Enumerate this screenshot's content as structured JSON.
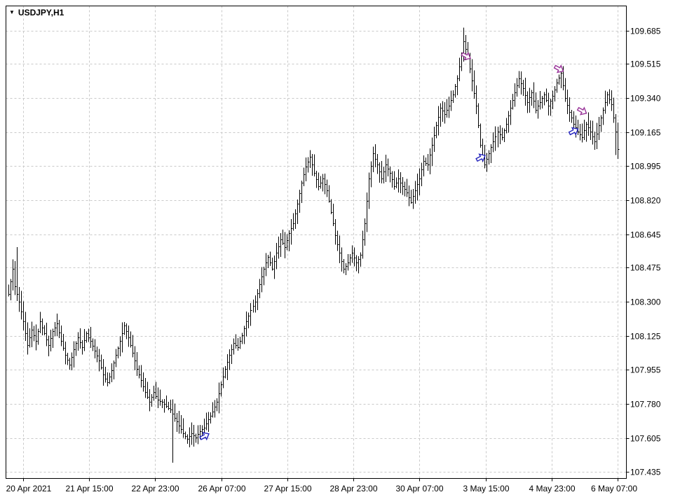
{
  "header": {
    "symbol_period": "USDJPY,H1",
    "dropdown_icon": "▼"
  },
  "chart_data": {
    "type": "bar",
    "subtype": "ohlc-hl-bars",
    "title": "USDJPY,H1",
    "symbol": "USDJPY",
    "period": "H1",
    "ylim": [
      107.4,
      109.81
    ],
    "grid": true,
    "bar_count": 290,
    "price_ticks": [
      "109.685",
      "109.515",
      "109.340",
      "109.165",
      "108.995",
      "108.820",
      "108.645",
      "108.475",
      "108.300",
      "108.125",
      "107.955",
      "107.780",
      "107.605",
      "107.435"
    ],
    "time_ticks": [
      "20 Apr 2021",
      "21 Apr 15:00",
      "22 Apr 23:00",
      "26 Apr 07:00",
      "27 Apr 15:00",
      "28 Apr 23:00",
      "30 Apr 07:00",
      "3 May 15:00",
      "4 May 23:00",
      "6 May 07:00"
    ],
    "close_waypoints": [
      [
        0,
        108.34
      ],
      [
        2,
        108.47
      ],
      [
        3,
        108.38
      ],
      [
        5,
        108.3
      ],
      [
        7,
        108.2
      ],
      [
        9,
        108.08
      ],
      [
        11,
        108.16
      ],
      [
        13,
        108.1
      ],
      [
        15,
        108.2
      ],
      [
        17,
        108.14
      ],
      [
        19,
        108.08
      ],
      [
        21,
        108.15
      ],
      [
        23,
        108.19
      ],
      [
        25,
        108.1
      ],
      [
        27,
        108.03
      ],
      [
        29,
        107.98
      ],
      [
        31,
        108.06
      ],
      [
        33,
        108.12
      ],
      [
        35,
        108.07
      ],
      [
        37,
        108.14
      ],
      [
        39,
        108.1
      ],
      [
        41,
        108.05
      ],
      [
        43,
        108.0
      ],
      [
        45,
        107.93
      ],
      [
        47,
        107.89
      ],
      [
        49,
        107.95
      ],
      [
        51,
        108.03
      ],
      [
        53,
        108.1
      ],
      [
        55,
        108.18
      ],
      [
        57,
        108.12
      ],
      [
        59,
        108.04
      ],
      [
        61,
        107.96
      ],
      [
        63,
        107.9
      ],
      [
        65,
        107.84
      ],
      [
        67,
        107.79
      ],
      [
        69,
        107.84
      ],
      [
        71,
        107.8
      ],
      [
        73,
        107.79
      ],
      [
        75,
        107.77
      ],
      [
        77,
        107.75
      ],
      [
        79,
        107.71
      ],
      [
        81,
        107.67
      ],
      [
        83,
        107.63
      ],
      [
        85,
        107.6
      ],
      [
        87,
        107.63
      ],
      [
        89,
        107.61
      ],
      [
        91,
        107.64
      ],
      [
        93,
        107.66
      ],
      [
        95,
        107.7
      ],
      [
        97,
        107.74
      ],
      [
        99,
        107.79
      ],
      [
        101,
        107.88
      ],
      [
        103,
        107.96
      ],
      [
        105,
        108.03
      ],
      [
        107,
        108.09
      ],
      [
        109,
        108.07
      ],
      [
        111,
        108.13
      ],
      [
        113,
        108.2
      ],
      [
        115,
        108.26
      ],
      [
        117,
        108.3
      ],
      [
        119,
        108.39
      ],
      [
        121,
        108.47
      ],
      [
        123,
        108.53
      ],
      [
        125,
        108.47
      ],
      [
        127,
        108.55
      ],
      [
        129,
        108.62
      ],
      [
        131,
        108.58
      ],
      [
        133,
        108.65
      ],
      [
        135,
        108.7
      ],
      [
        137,
        108.8
      ],
      [
        139,
        108.91
      ],
      [
        141,
        108.99
      ],
      [
        143,
        109.04
      ],
      [
        145,
        108.96
      ],
      [
        147,
        108.89
      ],
      [
        149,
        108.93
      ],
      [
        151,
        108.87
      ],
      [
        153,
        108.76
      ],
      [
        155,
        108.64
      ],
      [
        157,
        108.55
      ],
      [
        159,
        108.47
      ],
      [
        161,
        108.5
      ],
      [
        163,
        108.55
      ],
      [
        165,
        108.5
      ],
      [
        167,
        108.54
      ],
      [
        169,
        108.7
      ],
      [
        171,
        108.93
      ],
      [
        173,
        109.06
      ],
      [
        175,
        109.0
      ],
      [
        177,
        108.93
      ],
      [
        179,
        109.0
      ],
      [
        181,
        108.96
      ],
      [
        183,
        108.89
      ],
      [
        185,
        108.93
      ],
      [
        187,
        108.89
      ],
      [
        189,
        108.86
      ],
      [
        191,
        108.81
      ],
      [
        193,
        108.87
      ],
      [
        195,
        108.93
      ],
      [
        197,
        109.02
      ],
      [
        199,
        109.0
      ],
      [
        201,
        109.1
      ],
      [
        203,
        109.2
      ],
      [
        205,
        109.29
      ],
      [
        207,
        109.26
      ],
      [
        209,
        109.3
      ],
      [
        211,
        109.36
      ],
      [
        213,
        109.44
      ],
      [
        215,
        109.56
      ],
      [
        216,
        109.63
      ],
      [
        218,
        109.55
      ],
      [
        220,
        109.43
      ],
      [
        222,
        109.3
      ],
      [
        224,
        109.1
      ],
      [
        226,
        109.0
      ],
      [
        228,
        109.06
      ],
      [
        230,
        109.12
      ],
      [
        232,
        109.17
      ],
      [
        234,
        109.14
      ],
      [
        236,
        109.21
      ],
      [
        238,
        109.29
      ],
      [
        240,
        109.37
      ],
      [
        242,
        109.44
      ],
      [
        244,
        109.39
      ],
      [
        246,
        109.32
      ],
      [
        248,
        109.37
      ],
      [
        250,
        109.28
      ],
      [
        252,
        109.32
      ],
      [
        254,
        109.36
      ],
      [
        256,
        109.3
      ],
      [
        258,
        109.35
      ],
      [
        260,
        109.42
      ],
      [
        262,
        109.47
      ],
      [
        264,
        109.34
      ],
      [
        266,
        109.27
      ],
      [
        268,
        109.21
      ],
      [
        270,
        109.17
      ],
      [
        272,
        109.14
      ],
      [
        274,
        109.21
      ],
      [
        276,
        109.17
      ],
      [
        278,
        109.12
      ],
      [
        280,
        109.2
      ],
      [
        282,
        109.28
      ],
      [
        284,
        109.36
      ],
      [
        286,
        109.31
      ],
      [
        288,
        109.17
      ],
      [
        289,
        109.08
      ]
    ],
    "spikes": [
      {
        "bar": 4,
        "high": 108.58
      },
      {
        "bar": 78,
        "low": 107.48
      },
      {
        "bar": 216,
        "high": 109.7
      },
      {
        "bar": 288,
        "low": 109.05
      }
    ],
    "trade_arrows": [
      {
        "bar": 93,
        "price": 107.615,
        "side": "buy"
      },
      {
        "bar": 217,
        "price": 109.555,
        "side": "sell"
      },
      {
        "bar": 224,
        "price": 109.035,
        "side": "buy"
      },
      {
        "bar": 261,
        "price": 109.49,
        "side": "sell"
      },
      {
        "bar": 272,
        "price": 109.275,
        "side": "sell"
      },
      {
        "bar": 268,
        "price": 109.17,
        "side": "buy"
      }
    ],
    "colors": {
      "background": "#ffffff",
      "border": "#000000",
      "grid": "#c9c9c9",
      "bar": "#000000",
      "text": "#000000",
      "buy_arrow": "#2222bb",
      "sell_arrow": "#993399"
    },
    "legend_position": "none"
  }
}
